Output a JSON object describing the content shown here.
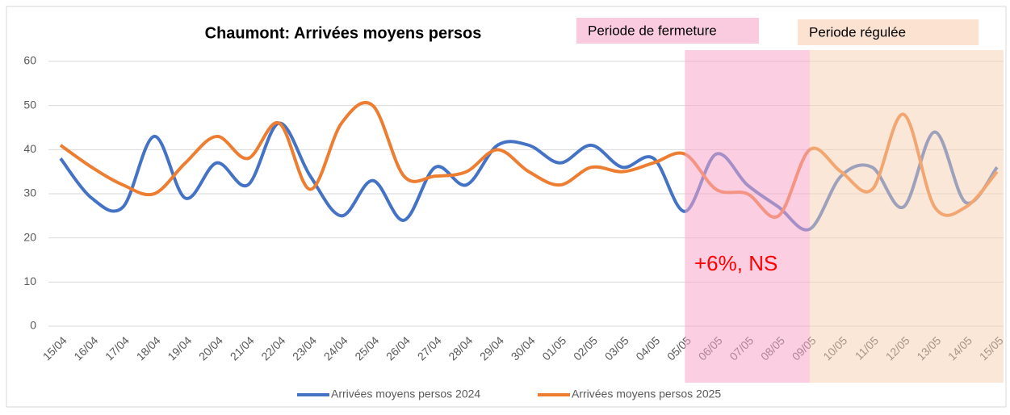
{
  "chart_data": {
    "type": "line",
    "title": "Chaumont: Arrivées moyens persos",
    "categories": [
      "15/04",
      "16/04",
      "17/04",
      "18/04",
      "19/04",
      "20/04",
      "21/04",
      "22/04",
      "23/04",
      "24/04",
      "25/04",
      "26/04",
      "27/04",
      "28/04",
      "29/04",
      "30/04",
      "01/05",
      "02/05",
      "03/05",
      "04/05",
      "05/05",
      "06/05",
      "07/05",
      "08/05",
      "09/05",
      "10/05",
      "11/05",
      "12/05",
      "13/05",
      "14/05",
      "15/05"
    ],
    "series": [
      {
        "name": "Arrivées moyens persos 2024",
        "color": "#4472c4",
        "values": [
          38,
          29,
          27,
          43,
          29,
          37,
          32,
          46,
          34,
          25,
          33,
          24,
          36,
          32,
          41,
          41,
          37,
          41,
          36,
          38,
          26,
          39,
          32,
          27,
          22,
          34,
          36,
          27,
          44,
          28,
          36
        ]
      },
      {
        "name": "Arrivées moyens persos 2025",
        "color": "#ed7d31",
        "values": [
          41,
          36,
          32,
          30,
          37,
          43,
          38,
          46,
          31,
          46,
          50,
          34,
          34,
          35,
          40,
          35,
          32,
          36,
          35,
          37,
          39,
          31,
          30,
          25,
          40,
          35,
          31,
          48,
          27,
          27,
          35
        ]
      }
    ],
    "ylim": [
      0,
      60
    ],
    "yticks": [
      0,
      10,
      20,
      30,
      40,
      50,
      60
    ],
    "grid": true,
    "legend": "bottom",
    "regions": [
      {
        "label": "Periode de fermeture",
        "start": 20,
        "end": 24,
        "color": "#f7a8c8"
      },
      {
        "label": "Periode régulée",
        "start": 24,
        "end": 30,
        "color": "#f8cfb2"
      }
    ],
    "annotation": "+6%, NS"
  }
}
